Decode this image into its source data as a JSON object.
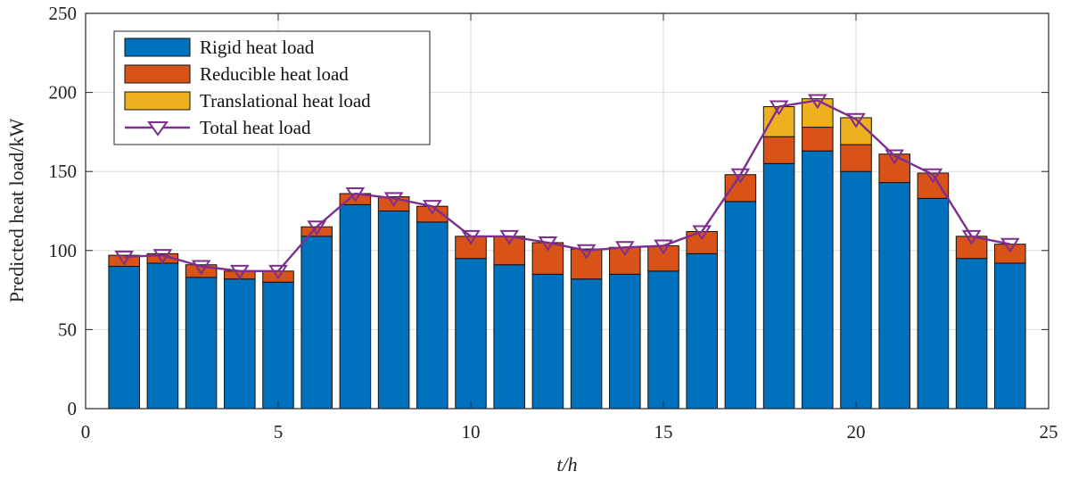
{
  "chart_data": {
    "type": "bar",
    "stacked": true,
    "x": [
      1,
      2,
      3,
      4,
      5,
      6,
      7,
      8,
      9,
      10,
      11,
      12,
      13,
      14,
      15,
      16,
      17,
      18,
      19,
      20,
      21,
      22,
      23,
      24
    ],
    "series": [
      {
        "name": "Rigid heat load",
        "color": "#0072BD",
        "values": [
          90,
          92,
          83,
          82,
          80,
          109,
          129,
          125,
          118,
          95,
          91,
          85,
          82,
          85,
          87,
          98,
          131,
          155,
          163,
          150,
          143,
          133,
          95,
          92
        ]
      },
      {
        "name": "Reducible heat load",
        "color": "#D95319",
        "values": [
          7,
          6,
          8,
          5,
          7,
          6,
          7,
          9,
          10,
          14,
          18,
          20,
          19,
          17,
          16,
          14,
          17,
          17,
          15,
          17,
          18,
          16,
          14,
          12
        ]
      },
      {
        "name": "Translational heat load",
        "color": "#EDB120",
        "values": [
          0,
          0,
          0,
          0,
          0,
          0,
          0,
          0,
          0,
          0,
          0,
          0,
          0,
          0,
          0,
          0,
          0,
          19,
          18,
          17,
          0,
          0,
          0,
          0
        ]
      }
    ],
    "line": {
      "name": "Total heat load",
      "color": "#7E2F8E",
      "values": [
        96,
        97,
        90,
        87,
        87,
        115,
        136,
        133,
        128,
        109,
        109,
        105,
        100,
        102,
        103,
        112,
        148,
        191,
        195,
        183,
        160,
        148,
        109,
        104
      ]
    },
    "xlabel": "t/h",
    "ylabel": "Predicted heat load/kW",
    "xlim": [
      0,
      25
    ],
    "ylim": [
      0,
      250
    ],
    "xticks": [
      "0",
      "5",
      "10",
      "15",
      "20",
      "25"
    ],
    "yticks": [
      "0",
      "50",
      "100",
      "150",
      "200",
      "250"
    ],
    "grid": true,
    "legend": "top-left"
  }
}
